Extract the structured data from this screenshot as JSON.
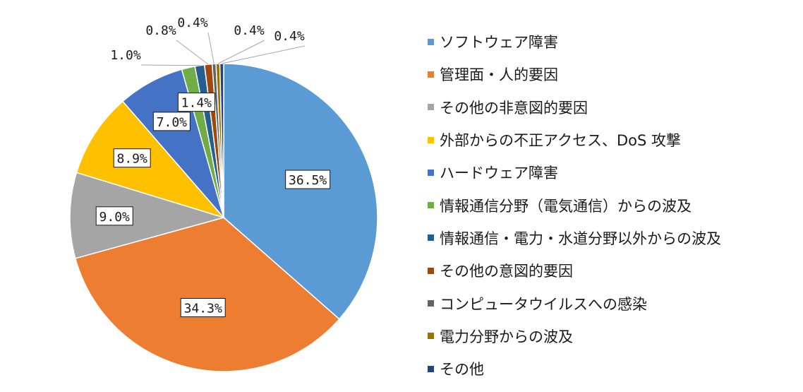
{
  "chart_data": {
    "type": "pie",
    "title": "",
    "legend_position": "right",
    "slices": [
      {
        "label": "ソフトウェア障害",
        "value": 36.5,
        "display": "36.5%",
        "color": "#5b9bd5",
        "label_style": "inside"
      },
      {
        "label": "管理面・人的要因",
        "value": 34.3,
        "display": "34.3%",
        "color": "#ed7d31",
        "label_style": "inside"
      },
      {
        "label": "その他の非意図的要因",
        "value": 9.0,
        "display": "9.0%",
        "color": "#a5a5a5",
        "label_style": "inside"
      },
      {
        "label": "外部からの不正アクセス、DoS 攻撃",
        "value": 8.9,
        "display": "8.9%",
        "color": "#ffc000",
        "label_style": "inside"
      },
      {
        "label": "ハードウェア障害",
        "value": 7.0,
        "display": "7.0%",
        "color": "#4472c4",
        "label_style": "inside"
      },
      {
        "label": "情報通信分野（電気通信）からの波及",
        "value": 1.4,
        "display": "1.4%",
        "color": "#70ad47",
        "label_style": "inside"
      },
      {
        "label": "情報通信・電力・水道分野以外からの波及",
        "value": 1.0,
        "display": "1.0%",
        "color": "#255e91",
        "label_style": "outside"
      },
      {
        "label": "その他の意図的要因",
        "value": 0.8,
        "display": "0.8%",
        "color": "#9e480e",
        "label_style": "outside"
      },
      {
        "label": "コンピュータウイルスへの感染",
        "value": 0.4,
        "display": "0.4%",
        "color": "#636363",
        "label_style": "outside"
      },
      {
        "label": "電力分野からの波及",
        "value": 0.4,
        "display": "0.4%",
        "color": "#997300",
        "label_style": "outside"
      },
      {
        "label": "その他",
        "value": 0.4,
        "display": "0.4%",
        "color": "#264478",
        "label_style": "outside"
      }
    ]
  }
}
